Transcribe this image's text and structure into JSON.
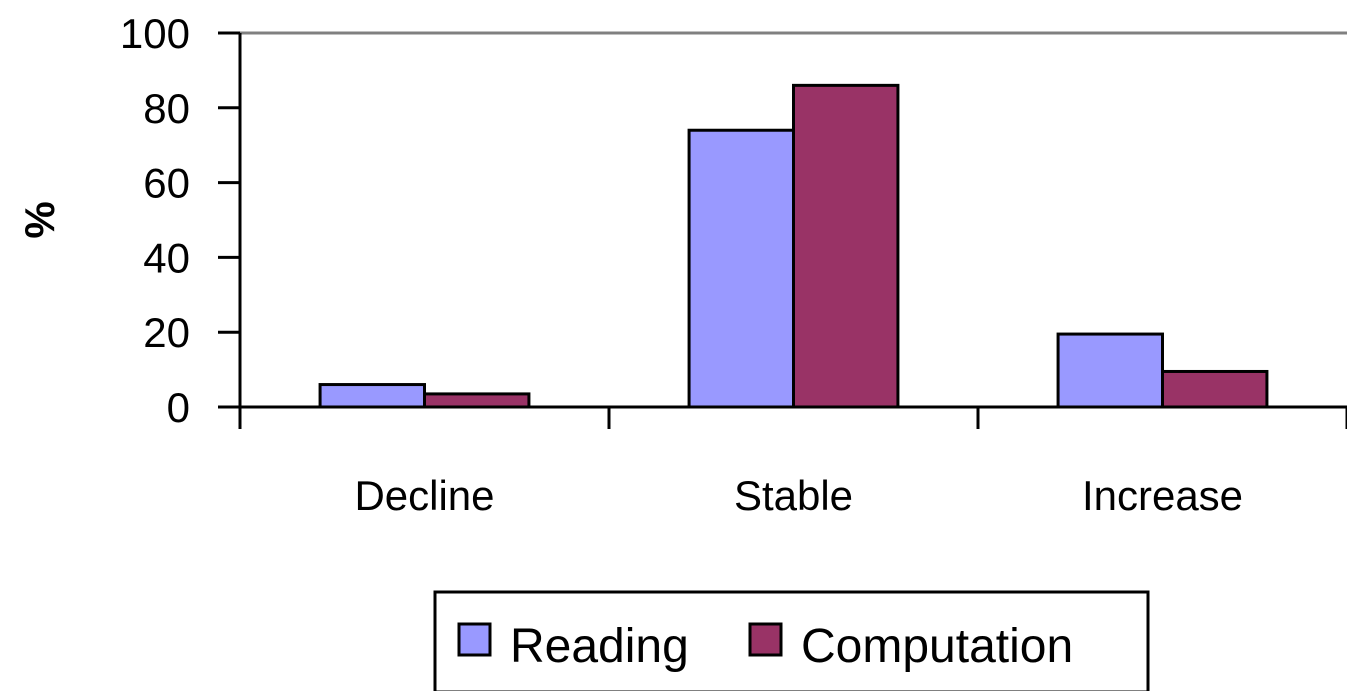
{
  "chart_data": {
    "type": "bar",
    "title": "",
    "xlabel": "",
    "ylabel": "%",
    "ylim": [
      0,
      100
    ],
    "yticks": [
      "0",
      "20",
      "40",
      "60",
      "80",
      "100"
    ],
    "categories": [
      "Decline",
      "Stable",
      "Increase"
    ],
    "series": [
      {
        "name": "Reading",
        "values": [
          6,
          74,
          19.5
        ],
        "color": "#9999ff"
      },
      {
        "name": "Computation",
        "values": [
          3.5,
          86,
          9.5
        ],
        "color": "#993366"
      }
    ],
    "grid": false,
    "legend": "bottom"
  }
}
